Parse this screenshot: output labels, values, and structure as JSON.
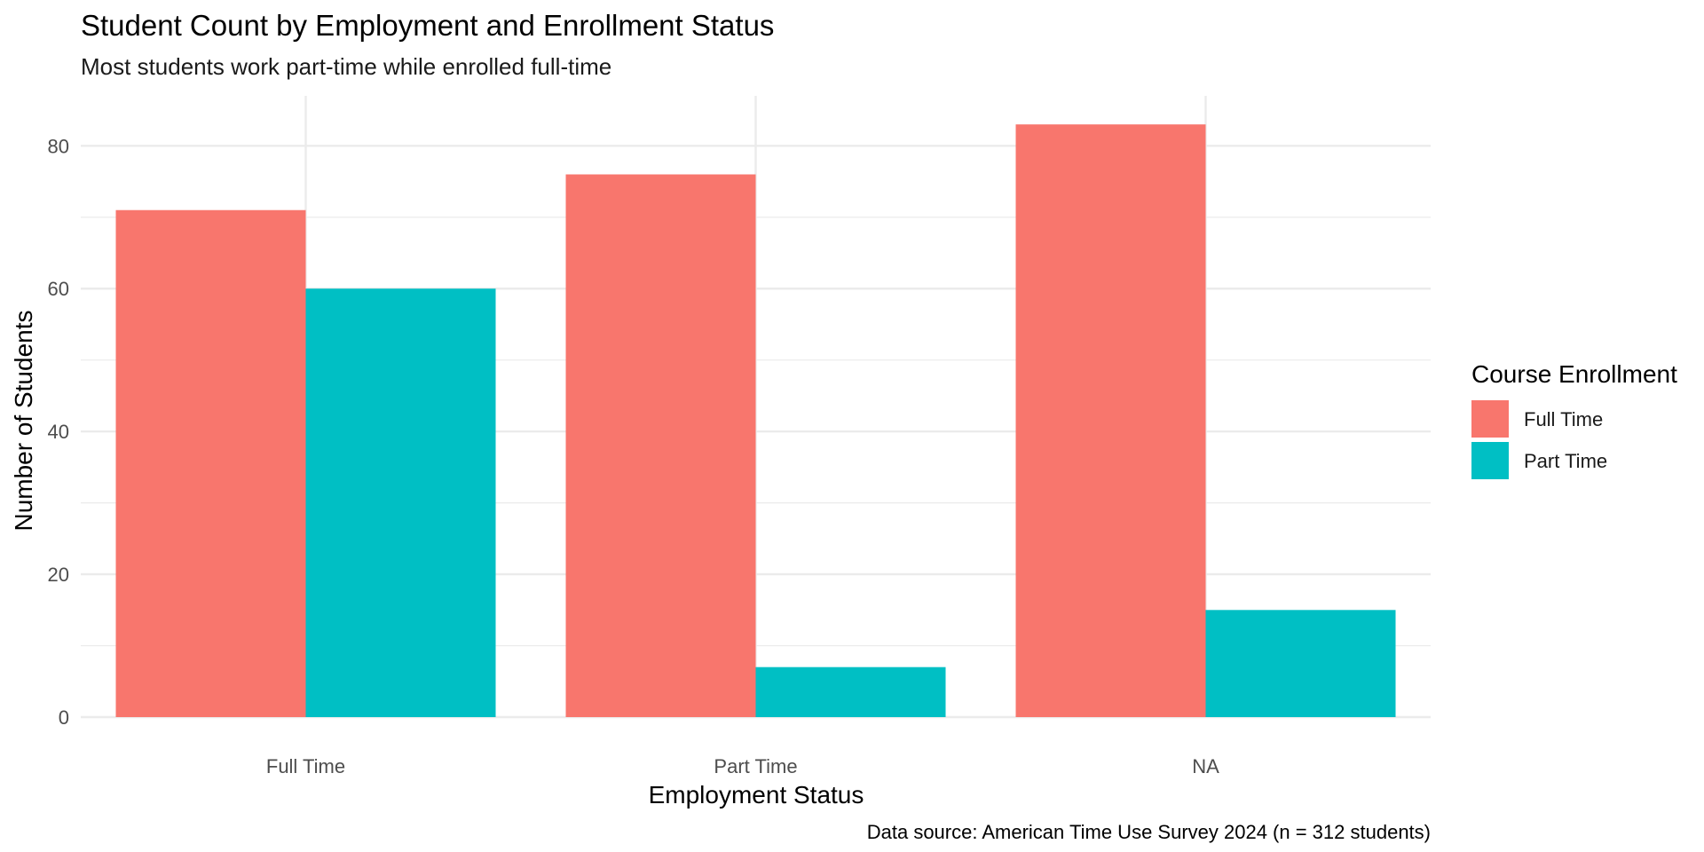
{
  "chart_data": {
    "type": "bar",
    "title": "Student Count by Employment and Enrollment Status",
    "subtitle": "Most students work part-time while enrolled full-time",
    "xlabel": "Employment Status",
    "ylabel": "Number of Students",
    "caption": "Data source: American Time Use Survey 2024 (n = 312 students)",
    "categories": [
      "Full Time",
      "Part Time",
      "NA"
    ],
    "series": [
      {
        "name": "Full Time",
        "color": "#F8766D",
        "values": [
          71,
          76,
          83
        ]
      },
      {
        "name": "Part Time",
        "color": "#00BFC4",
        "values": [
          60,
          7,
          15
        ]
      }
    ],
    "ylim": [
      0,
      87
    ],
    "yticks": [
      0,
      20,
      40,
      60,
      80
    ],
    "grid": true,
    "legend": {
      "title": "Course Enrollment",
      "position": "right"
    }
  }
}
